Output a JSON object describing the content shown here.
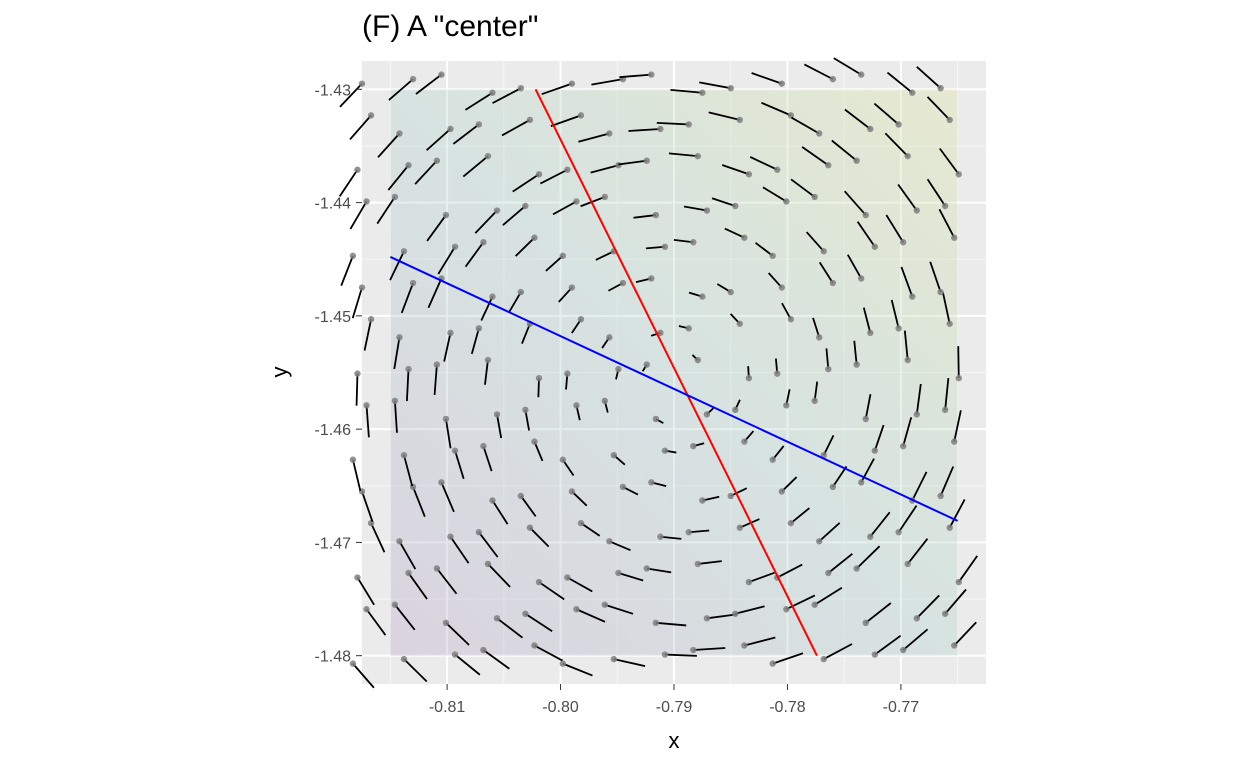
{
  "chart_data": {
    "type": "vector-field",
    "title": "(F) A \"center\"",
    "xlabel": "x",
    "ylabel": "y",
    "xlim": [
      -0.8175,
      -0.7625
    ],
    "ylim": [
      -1.4825,
      -1.4275
    ],
    "x_ticks": [
      -0.81,
      -0.8,
      -0.79,
      -0.78,
      -0.77
    ],
    "x_tick_labels": [
      "-0.81",
      "-0.80",
      "-0.79",
      "-0.78",
      "-0.77"
    ],
    "y_ticks": [
      -1.43,
      -1.44,
      -1.45,
      -1.46,
      -1.47,
      -1.48
    ],
    "y_tick_labels": [
      "-1.43",
      "-1.44",
      "-1.45",
      "-1.46",
      "-1.47",
      "-1.48"
    ],
    "grid": true,
    "center": {
      "x": -0.7898,
      "y": -1.4559
    },
    "nullclines": [
      {
        "color": "#ff0000",
        "x": [
          -0.8022,
          -0.7774
        ],
        "y": [
          -1.43,
          -1.48
        ]
      },
      {
        "color": "#0000ff",
        "x": [
          -0.815,
          -0.765
        ],
        "y": [
          -1.4448,
          -1.4681
        ]
      }
    ],
    "shaded_region": {
      "x": [
        -0.815,
        -0.765
      ],
      "y": [
        -1.48,
        -1.43
      ]
    },
    "field_grid": {
      "nx": 15,
      "ny": 15,
      "x_start": -0.8175,
      "x_step": 0.0037,
      "y_start": -1.4799,
      "y_step": 0.0036
    },
    "colors": {
      "panel": "#ebebeb",
      "grid_major": "#ffffff",
      "arrow": "#000000",
      "point": "#7f7f7f"
    }
  }
}
